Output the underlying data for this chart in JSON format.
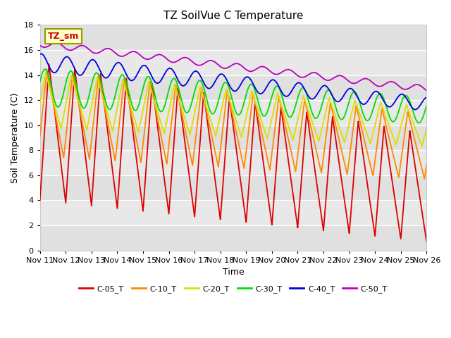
{
  "title": "TZ SoilVue C Temperature",
  "xlabel": "Time",
  "ylabel": "Soil Temperature (C)",
  "ylim": [
    0,
    18
  ],
  "xtick_labels": [
    "Nov 11",
    "Nov 12",
    "Nov 13",
    "Nov 14",
    "Nov 15",
    "Nov 16",
    "Nov 17",
    "Nov 18",
    "Nov 19",
    "Nov 20",
    "Nov 21",
    "Nov 22",
    "Nov 23",
    "Nov 24",
    "Nov 25",
    "Nov 26"
  ],
  "legend_labels": [
    "C-05_T",
    "C-10_T",
    "C-20_T",
    "C-30_T",
    "C-40_T",
    "C-50_T"
  ],
  "line_colors": [
    "#dd0000",
    "#ff8800",
    "#dddd00",
    "#00dd00",
    "#0000dd",
    "#bb00bb"
  ],
  "annotation_text": "TZ_sm",
  "annotation_bg": "#ffffcc",
  "annotation_border": "#999900",
  "plot_bg_color": "#e8e8e8",
  "title_fontsize": 11,
  "axis_label_fontsize": 9,
  "tick_fontsize": 8
}
